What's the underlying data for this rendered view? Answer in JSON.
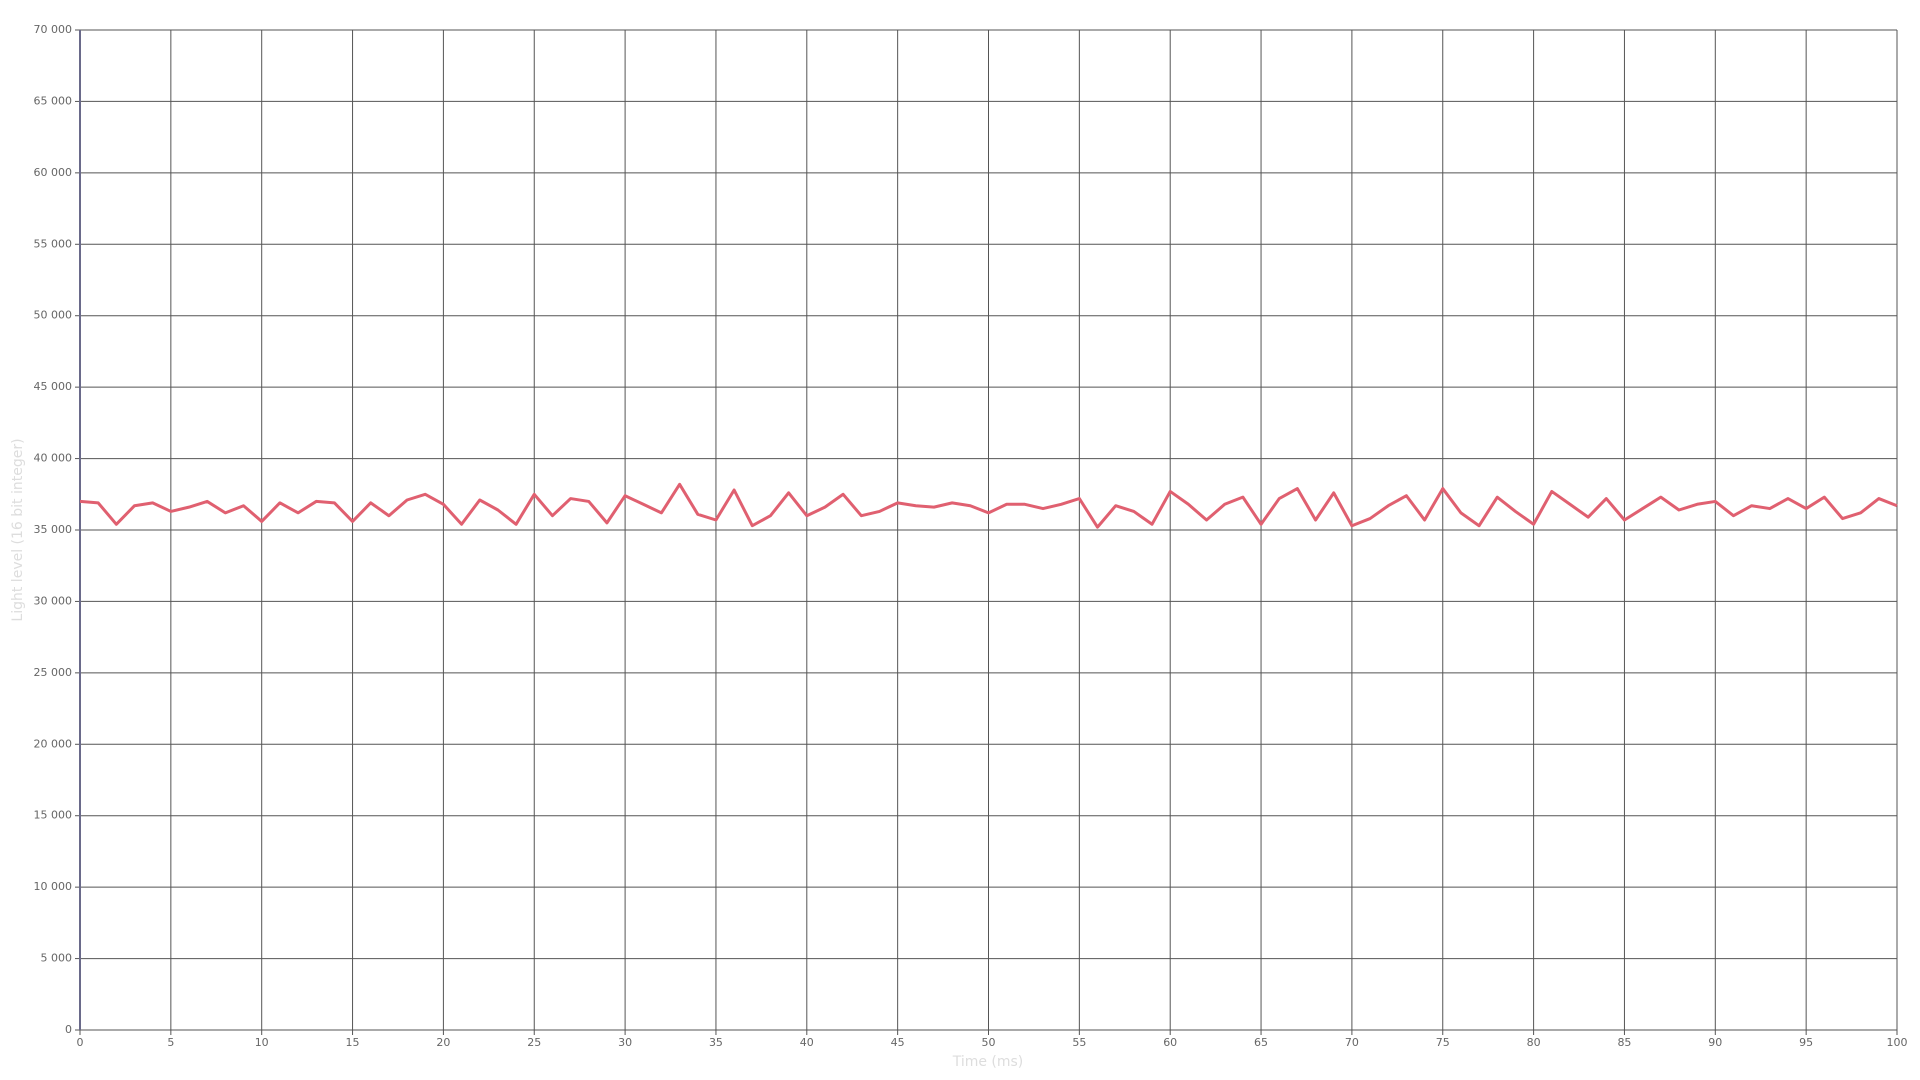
{
  "chart_data": {
    "type": "line",
    "x_label": "Time (ms)",
    "y_label": "Light level (16 bit integer)",
    "x": [
      0,
      1,
      2,
      3,
      4,
      5,
      6,
      7,
      8,
      9,
      10,
      11,
      12,
      13,
      14,
      15,
      16,
      17,
      18,
      19,
      20,
      21,
      22,
      23,
      24,
      25,
      26,
      27,
      28,
      29,
      30,
      31,
      32,
      33,
      34,
      35,
      36,
      37,
      38,
      39,
      40,
      41,
      42,
      43,
      44,
      45,
      46,
      47,
      48,
      49,
      50,
      51,
      52,
      53,
      54,
      55,
      56,
      57,
      58,
      59,
      60,
      61,
      62,
      63,
      64,
      65,
      66,
      67,
      68,
      69,
      70,
      71,
      72,
      73,
      74,
      75,
      76,
      77,
      78,
      79,
      80,
      81,
      82,
      83,
      84,
      85,
      86,
      87,
      88,
      89,
      90,
      91,
      92,
      93,
      94,
      95,
      96,
      97,
      98,
      99,
      100
    ],
    "series": [
      {
        "color": "#e06070",
        "values": [
          37000,
          36900,
          35400,
          36700,
          36900,
          36300,
          36600,
          37000,
          36200,
          36700,
          35600,
          36900,
          36200,
          37000,
          36900,
          35600,
          36900,
          36000,
          37100,
          37500,
          36800,
          35400,
          37100,
          36400,
          35400,
          37500,
          36000,
          37200,
          37000,
          35500,
          37400,
          36800,
          36200,
          38200,
          36100,
          35700,
          37800,
          35300,
          36000,
          37600,
          36000,
          36600,
          37500,
          36000,
          36300,
          36900,
          36700,
          36600,
          36900,
          36700,
          36200,
          36800,
          36800,
          36500,
          36800,
          37200,
          35200,
          36700,
          36300,
          35400,
          37700,
          36800,
          35700,
          36800,
          37300,
          35400,
          37200,
          37900,
          35700,
          37600,
          35300,
          35800,
          36700,
          37400,
          35700,
          37900,
          36200,
          35300,
          37300,
          36300,
          35400,
          37700,
          36800,
          35900,
          37200,
          35700,
          36500,
          37300,
          36400,
          36800,
          37000,
          36000,
          36700,
          36500,
          37200,
          36500,
          37300,
          35800,
          36200,
          37200,
          36700
        ]
      }
    ],
    "xlim": [
      0,
      100
    ],
    "xticks": [
      0,
      5,
      10,
      15,
      20,
      25,
      30,
      35,
      40,
      45,
      50,
      55,
      60,
      65,
      70,
      75,
      80,
      85,
      90,
      95,
      100
    ],
    "ylim": [
      0,
      70000
    ],
    "yticks": [
      0,
      {
        "value": 5000,
        "label": "5 000"
      },
      {
        "value": 10000,
        "label": "10 000"
      },
      {
        "value": 15000,
        "label": "15 000"
      },
      {
        "value": 20000,
        "label": "20 000"
      },
      {
        "value": 25000,
        "label": "25 000"
      },
      {
        "value": 30000,
        "label": "30 000"
      },
      {
        "value": 35000,
        "label": "35 000"
      },
      {
        "value": 40000,
        "label": "40 000"
      },
      {
        "value": 45000,
        "label": "45 000"
      },
      {
        "value": 50000,
        "label": "50 000"
      },
      {
        "value": 55000,
        "label": "55 000"
      },
      {
        "value": 60000,
        "label": "60 000"
      },
      {
        "value": 65000,
        "label": "65 000"
      },
      {
        "value": 70000,
        "label": "70 000"
      }
    ],
    "grid": true
  }
}
